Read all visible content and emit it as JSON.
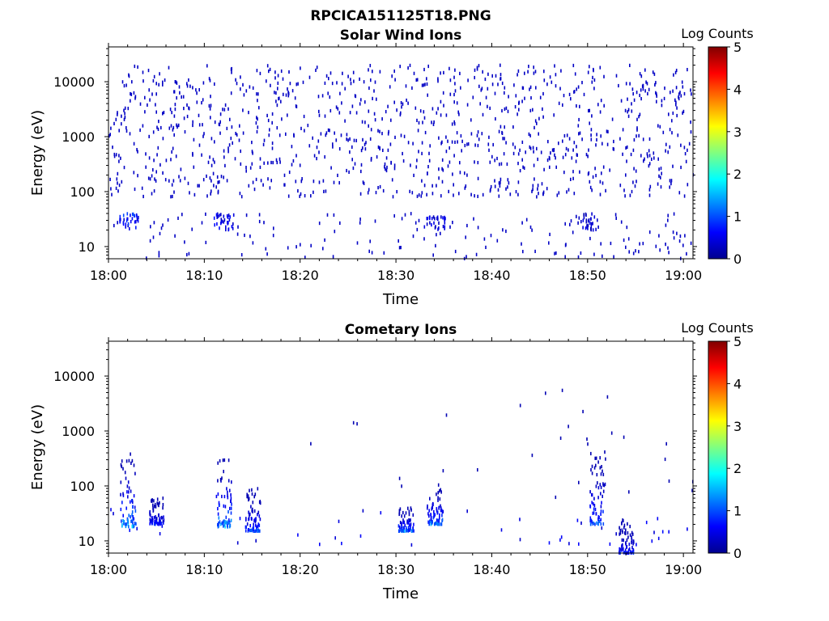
{
  "figure_title": "RPCICA151125T18.PNG",
  "colors": {
    "axis": "#000000",
    "colormap": [
      "#00008f",
      "#0000ff",
      "#0080ff",
      "#00ffff",
      "#80ff80",
      "#ffff00",
      "#ff8000",
      "#ff0000",
      "#800000"
    ]
  },
  "chart_data": [
    {
      "type": "heatmap",
      "title": "Solar Wind Ions",
      "xlabel": "Time",
      "ylabel": "Energy (eV)",
      "y_scale": "log",
      "x_range": [
        "18:00",
        "19:01"
      ],
      "y_range": [
        6,
        43000
      ],
      "x_tick_labels": [
        "18:00",
        "18:10",
        "18:20",
        "18:30",
        "18:40",
        "18:50",
        "19:00"
      ],
      "y_tick_labels": [
        "10",
        "100",
        "1000",
        "10000"
      ],
      "colorbar": {
        "label": "Log Counts",
        "range": [
          0,
          5
        ],
        "tick_labels": [
          "0",
          "1",
          "2",
          "3",
          "4",
          "5"
        ]
      },
      "description_values": {
        "dominant_log_counts": 0.3,
        "background_band_energy_range_eV": [
          80,
          20000
        ],
        "low_energy_clusters": [
          {
            "time": "18:02",
            "energy_range_eV": [
              20,
              40
            ],
            "log_counts": 1.0
          },
          {
            "time": "18:12",
            "energy_range_eV": [
              20,
              40
            ],
            "log_counts": 0.7
          },
          {
            "time": "18:34",
            "energy_range_eV": [
              20,
              35
            ],
            "log_counts": 0.6
          },
          {
            "time": "18:50",
            "energy_range_eV": [
              20,
              40
            ],
            "log_counts": 0.5
          }
        ]
      }
    },
    {
      "type": "heatmap",
      "title": "Cometary Ions",
      "xlabel": "Time",
      "ylabel": "Energy (eV)",
      "y_scale": "log",
      "x_range": [
        "18:00",
        "19:01"
      ],
      "y_range": [
        6,
        43000
      ],
      "x_tick_labels": [
        "18:00",
        "18:10",
        "18:20",
        "18:30",
        "18:40",
        "18:50",
        "19:00"
      ],
      "y_tick_labels": [
        "10",
        "100",
        "1000",
        "10000"
      ],
      "colorbar": {
        "label": "Log Counts",
        "range": [
          0,
          5
        ],
        "tick_labels": [
          "0",
          "1",
          "2",
          "3",
          "4",
          "5"
        ]
      },
      "description_values": {
        "bursts": [
          {
            "time": "18:02",
            "energy_range_eV": [
              18,
              400
            ],
            "peak_log_counts": 2.0
          },
          {
            "time": "18:05",
            "energy_range_eV": [
              20,
              60
            ],
            "peak_log_counts": 1.0
          },
          {
            "time": "18:12",
            "energy_range_eV": [
              18,
              300
            ],
            "peak_log_counts": 2.0
          },
          {
            "time": "18:15",
            "energy_range_eV": [
              15,
              90
            ],
            "peak_log_counts": 1.3
          },
          {
            "time": "18:31",
            "energy_range_eV": [
              15,
              40
            ],
            "peak_log_counts": 1.6
          },
          {
            "time": "18:34",
            "energy_range_eV": [
              20,
              100
            ],
            "peak_log_counts": 1.7
          },
          {
            "time": "18:51",
            "energy_range_eV": [
              20,
              450
            ],
            "peak_log_counts": 1.5
          },
          {
            "time": "18:54",
            "energy_range_eV": [
              6,
              25
            ],
            "peak_log_counts": 1.0
          }
        ]
      }
    }
  ]
}
